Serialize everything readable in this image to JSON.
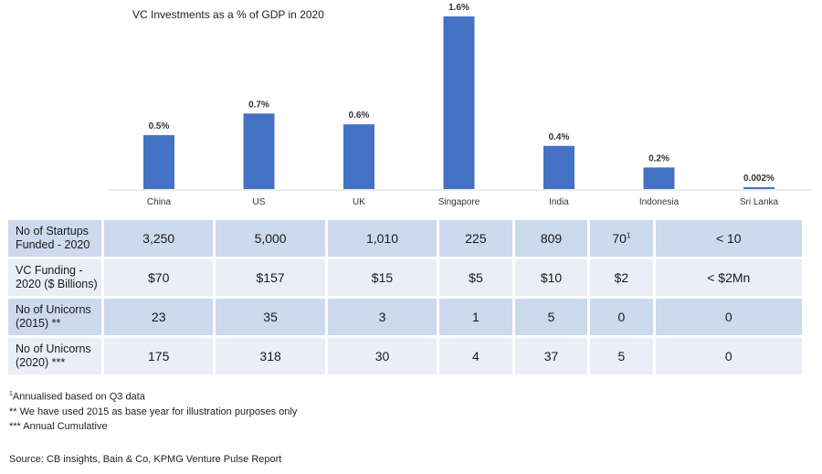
{
  "chart_data": {
    "type": "bar",
    "title": "VC Investments as a % of GDP in 2020",
    "categories": [
      "China",
      "US",
      "UK",
      "Singapore",
      "India",
      "Indonesia",
      "Sri Lanka"
    ],
    "values": [
      0.5,
      0.7,
      0.6,
      1.6,
      0.4,
      0.2,
      0.002
    ],
    "value_labels": [
      "0.5%",
      "0.7%",
      "0.6%",
      "1.6%",
      "0.4%",
      "0.2%",
      "0.002%"
    ],
    "unit": "%",
    "xlabel": "",
    "ylabel": "",
    "ylim": [
      0,
      1.6
    ],
    "grid": false,
    "legend": "none",
    "bar_color": "#4472C4"
  },
  "table": {
    "rows": [
      {
        "label": "No of Startups Funded - 2020",
        "cells": [
          "3,250",
          "5,000",
          "1,010",
          "225",
          "809",
          "70",
          "< 10"
        ]
      },
      {
        "label": "VC Funding - 2020 ($ Billions)",
        "cells": [
          "$70",
          "$157",
          "$15",
          "$5",
          "$10",
          "$2",
          "< $2Mn"
        ]
      },
      {
        "label": "No of Unicorns (2015) **",
        "cells": [
          "23",
          "35",
          "3",
          "1",
          "5",
          "0",
          "0"
        ]
      },
      {
        "label": "No of Unicorns (2020) ***",
        "cells": [
          "175",
          "318",
          "30",
          "4",
          "37",
          "5",
          "0"
        ]
      }
    ],
    "superscript_note": "1",
    "row_colors": [
      "#cdd9ec",
      "#e9eef7"
    ]
  },
  "footnotes": {
    "note1_marker": "1",
    "note1_text": "Annualised based on Q3 data",
    "note2": "** We have used 2015 as base year for illustration purposes only",
    "note3": "*** Annual Cumulative"
  },
  "source": "Source: CB insights, Bain & Co, KPMG Venture Pulse Report"
}
